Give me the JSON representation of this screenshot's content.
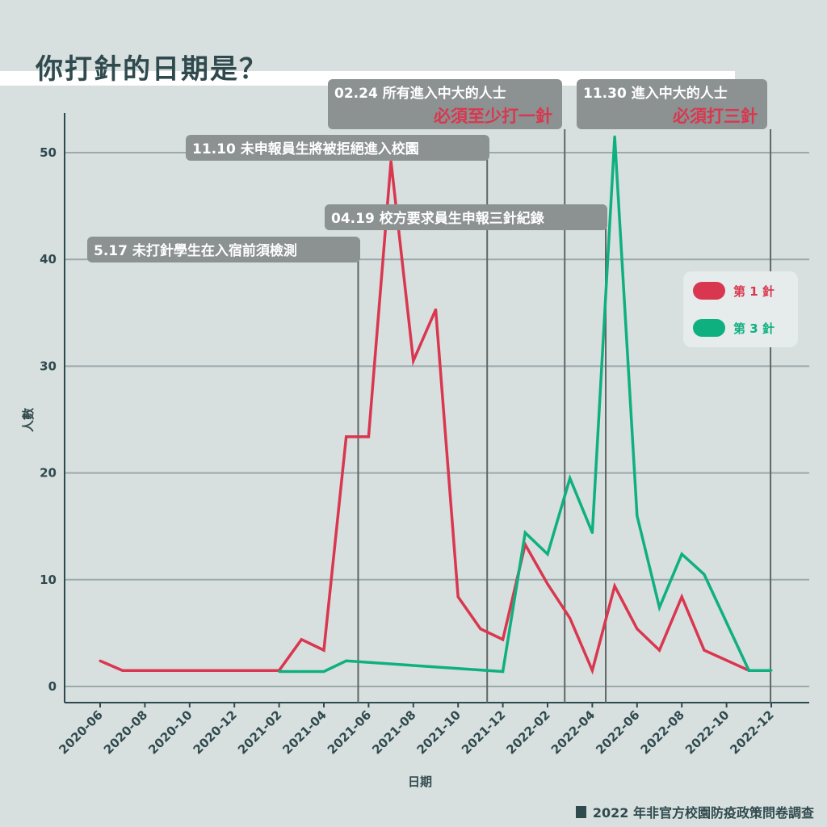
{
  "title": "你打針的日期是？",
  "footer": "2022 年非官方校園防疫政策問卷調查",
  "colors": {
    "dose1": "#d9374f",
    "dose3": "#0fb080",
    "axis": "#2f4a4e",
    "grid": "#9aa9aa",
    "annotation_bg": "#8c9191",
    "background": "#d8dfdf"
  },
  "chart_data": {
    "type": "line",
    "xlabel": "日期",
    "ylabel": "人數",
    "ylim": [
      0,
      55
    ],
    "xlim": [
      "2020-05",
      "2023-01"
    ],
    "yticks": [
      0,
      10,
      20,
      30,
      40,
      50
    ],
    "xticks": [
      "2020-06",
      "2020-08",
      "2020-10",
      "2020-12",
      "2021-02",
      "2021-04",
      "2021-06",
      "2021-08",
      "2021-10",
      "2021-12",
      "2022-02",
      "2022-04",
      "2022-06",
      "2022-08",
      "2022-10",
      "2022-12"
    ],
    "grid": "horizontal",
    "legend_position": "right",
    "series": [
      {
        "name": "第 1 針",
        "color": "#d9374f",
        "points": [
          [
            "2020-06",
            2.4
          ],
          [
            "2020-07",
            1.5
          ],
          [
            "2021-02",
            1.5
          ],
          [
            "2021-03",
            4.4
          ],
          [
            "2021-04",
            3.4
          ],
          [
            "2021-05",
            23.4
          ],
          [
            "2021-06",
            23.4
          ],
          [
            "2021-07",
            49.2
          ],
          [
            "2021-08",
            30.5
          ],
          [
            "2021-09",
            35.3
          ],
          [
            "2021-10",
            8.4
          ],
          [
            "2021-11",
            5.4
          ],
          [
            "2021-12",
            4.4
          ],
          [
            "2022-01",
            13.3
          ],
          [
            "2022-02",
            9.6
          ],
          [
            "2022-03",
            6.4
          ],
          [
            "2022-04",
            1.5
          ],
          [
            "2022-05",
            9.4
          ],
          [
            "2022-06",
            5.4
          ],
          [
            "2022-07",
            3.4
          ],
          [
            "2022-08",
            8.4
          ],
          [
            "2022-09",
            3.4
          ],
          [
            "2022-11",
            1.5
          ]
        ]
      },
      {
        "name": "第 3 針",
        "color": "#0fb080",
        "points": [
          [
            "2021-02",
            1.4
          ],
          [
            "2021-04",
            1.4
          ],
          [
            "2021-05",
            2.4
          ],
          [
            "2021-12",
            1.4
          ],
          [
            "2022-01",
            14.4
          ],
          [
            "2022-02",
            12.4
          ],
          [
            "2022-03",
            19.5
          ],
          [
            "2022-04",
            14.4
          ],
          [
            "2022-05",
            51.5
          ],
          [
            "2022-06",
            16.0
          ],
          [
            "2022-07",
            7.4
          ],
          [
            "2022-08",
            12.4
          ],
          [
            "2022-09",
            10.5
          ],
          [
            "2022-10",
            6.0
          ],
          [
            "2022-11",
            1.5
          ],
          [
            "2022-12",
            1.5
          ]
        ]
      }
    ],
    "annotations": [
      {
        "date": "2021-05-17",
        "text": "5.17 未打針學生在入宿前須檢測",
        "emphasis": ""
      },
      {
        "date": "2021-11-10",
        "text": "11.10 未申報員生將被拒絕進入校園",
        "emphasis": ""
      },
      {
        "date": "2022-02-24",
        "text": "02.24 所有進入中大的人士",
        "emphasis": "必須至少打一針"
      },
      {
        "date": "2022-04-19",
        "text": "04.19 校方要求員生申報三針紀錄",
        "emphasis": ""
      },
      {
        "date": "2022-11-30",
        "text": "11.30 進入中大的人士",
        "emphasis": "必須打三針"
      }
    ]
  }
}
